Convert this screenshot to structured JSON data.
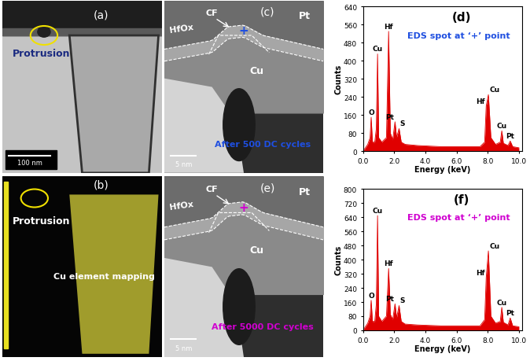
{
  "images": [
    {
      "panel": "(a)",
      "texts": [
        "Protrusion"
      ],
      "scale_bar": "100 nm"
    },
    {
      "panel": "(b)",
      "texts": [
        "Protrusion",
        "Cu element mapping"
      ]
    },
    {
      "panel": "(c)",
      "layers": [
        "HfOx",
        "Pt",
        "Cu"
      ],
      "filament": "CF",
      "spot": "+",
      "caption": "After 500 DC cycles",
      "scale_bar": "5 nm"
    },
    {
      "panel": "(e)",
      "layers": [
        "HfOx",
        "Pt",
        "Cu"
      ],
      "filament": "CF",
      "spot": "+",
      "caption": "After 5000 DC cycles",
      "scale_bar": "5 nm"
    }
  ],
  "chart_data": [
    {
      "type": "area",
      "title": "(d)",
      "subtitle": "EDS spot at ‘+’ point",
      "x_label": "Energy (keV)",
      "y_label": "Counts",
      "color": "#e00000",
      "x": [
        0.0,
        0.3,
        0.45,
        0.52,
        0.6,
        0.75,
        0.85,
        0.93,
        1.0,
        1.2,
        1.5,
        1.64,
        1.75,
        1.9,
        2.05,
        2.15,
        2.31,
        2.45,
        2.7,
        3.5,
        5.0,
        6.5,
        7.5,
        7.8,
        7.9,
        8.04,
        8.2,
        8.5,
        8.8,
        8.9,
        9.0,
        9.3,
        9.44,
        9.6,
        10.0
      ],
      "values": [
        0,
        30,
        60,
        150,
        40,
        40,
        100,
        430,
        60,
        40,
        60,
        530,
        80,
        50,
        130,
        60,
        100,
        40,
        30,
        25,
        20,
        20,
        20,
        40,
        200,
        250,
        60,
        30,
        40,
        90,
        35,
        25,
        45,
        20,
        15
      ],
      "annotations": [
        {
          "text": "O",
          "x": 0.52
        },
        {
          "text": "Cu",
          "x": 0.93
        },
        {
          "text": "Hf",
          "x": 1.64
        },
        {
          "text": "Pt",
          "x": 2.05
        },
        {
          "text": "S",
          "x": 2.31
        },
        {
          "text": "Hf",
          "x": 7.9
        },
        {
          "text": "Cu",
          "x": 8.04
        },
        {
          "text": "Cu",
          "x": 8.9
        },
        {
          "text": "Pt",
          "x": 9.44
        }
      ],
      "xlim": [
        0,
        10.2
      ],
      "xticks": [
        {
          "value": 0,
          "label": "0.0"
        },
        {
          "value": 2,
          "label": "2.0"
        },
        {
          "value": 4,
          "label": "4.0"
        },
        {
          "value": 6,
          "label": "6.0"
        },
        {
          "value": 8,
          "label": "8.0"
        },
        {
          "value": 10,
          "label": "10.0"
        }
      ],
      "ylim": [
        0,
        640
      ],
      "yticks": [
        0,
        80,
        160,
        240,
        320,
        400,
        480,
        560,
        640
      ]
    },
    {
      "type": "area",
      "title": "(f)",
      "subtitle": "EDS spot at ‘+’ point",
      "x_label": "Energy (keV)",
      "y_label": "Counts",
      "color": "#e00000",
      "x": [
        0.0,
        0.3,
        0.45,
        0.52,
        0.6,
        0.75,
        0.85,
        0.93,
        1.0,
        1.2,
        1.5,
        1.64,
        1.75,
        1.9,
        2.05,
        2.15,
        2.31,
        2.45,
        2.7,
        3.5,
        5.0,
        6.5,
        7.5,
        7.8,
        7.9,
        8.04,
        8.2,
        8.5,
        8.8,
        8.9,
        9.0,
        9.3,
        9.44,
        9.6,
        10.0
      ],
      "values": [
        0,
        40,
        80,
        170,
        50,
        50,
        150,
        650,
        80,
        50,
        80,
        350,
        90,
        60,
        150,
        70,
        140,
        50,
        35,
        30,
        25,
        25,
        25,
        60,
        300,
        450,
        80,
        40,
        50,
        130,
        45,
        30,
        70,
        25,
        20
      ],
      "annotations": [
        {
          "text": "O",
          "x": 0.52
        },
        {
          "text": "Cu",
          "x": 0.93
        },
        {
          "text": "Hf",
          "x": 1.64
        },
        {
          "text": "Pt",
          "x": 2.05
        },
        {
          "text": "S",
          "x": 2.31
        },
        {
          "text": "Hf",
          "x": 7.9
        },
        {
          "text": "Cu",
          "x": 8.04
        },
        {
          "text": "Cu",
          "x": 8.9
        },
        {
          "text": "Pt",
          "x": 9.44
        }
      ],
      "xlim": [
        0,
        10.2
      ],
      "xticks": [
        {
          "value": 0,
          "label": "0.0"
        },
        {
          "value": 2,
          "label": "2.0"
        },
        {
          "value": 4,
          "label": "4.0"
        },
        {
          "value": 6,
          "label": "6.0"
        },
        {
          "value": 8,
          "label": "8.0"
        },
        {
          "value": 10,
          "label": "10.0"
        }
      ],
      "ylim": [
        0,
        800
      ],
      "yticks": [
        0,
        80,
        160,
        240,
        320,
        400,
        480,
        560,
        640,
        720,
        800
      ]
    }
  ]
}
